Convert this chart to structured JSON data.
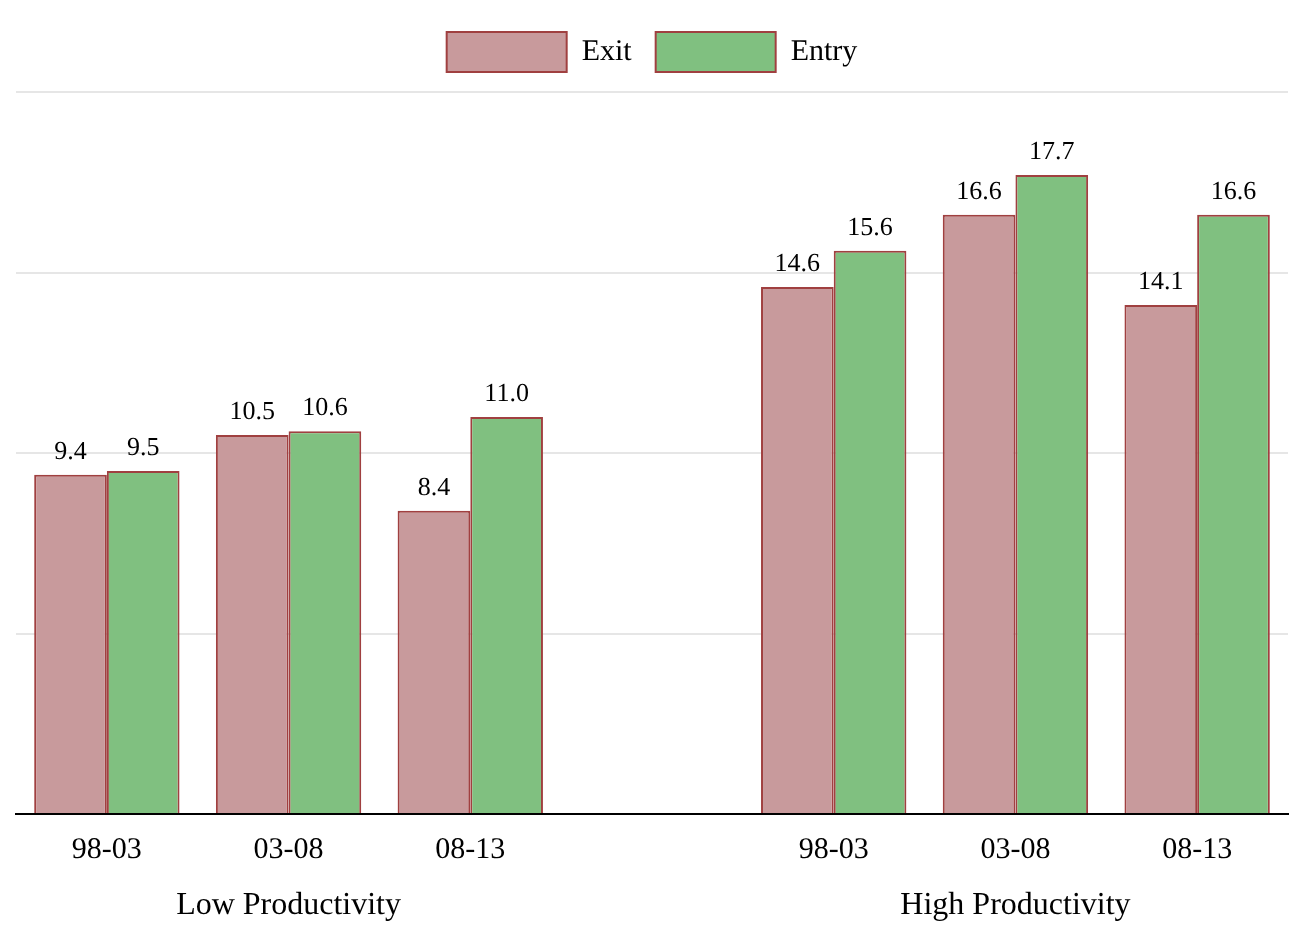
{
  "chart_data": {
    "type": "bar",
    "categories": [
      "98-03",
      "03-08",
      "08-13",
      null,
      "98-03",
      "03-08",
      "08-13"
    ],
    "series": [
      {
        "name": "Exit",
        "color": "#c89a9c",
        "values": [
          9.4,
          10.5,
          8.4,
          null,
          14.6,
          16.6,
          14.1
        ],
        "value_labels": [
          "9.4",
          "10.5",
          "8.4",
          null,
          "14.6",
          "16.6",
          "14.1"
        ]
      },
      {
        "name": "Entry",
        "color": "#80c080",
        "values": [
          9.5,
          10.6,
          11.0,
          null,
          15.6,
          17.7,
          16.6
        ],
        "value_labels": [
          "9.5",
          "10.6",
          "11.0",
          null,
          "15.6",
          "17.7",
          "16.6"
        ]
      }
    ],
    "annotations": [
      "Low Productivity",
      "High Productivity"
    ],
    "ylim": [
      0,
      20
    ],
    "yticks": [
      0,
      5,
      10,
      15,
      20
    ],
    "tick_labels": "x",
    "grid": "y",
    "legend": "top"
  }
}
